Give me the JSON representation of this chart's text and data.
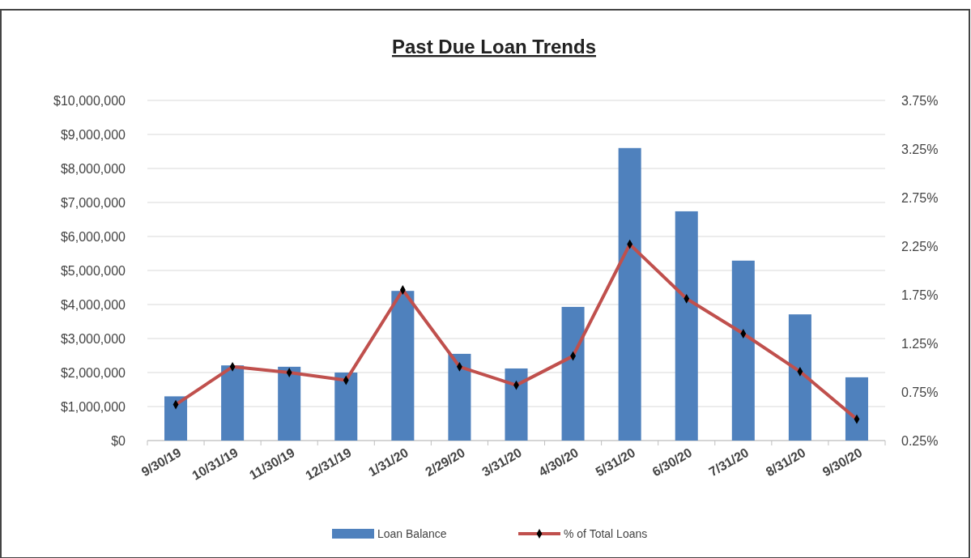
{
  "chart_data": {
    "type": "bar",
    "title": "Past Due Loan Trends",
    "categories": [
      "9/30/19",
      "10/31/19",
      "11/30/19",
      "12/31/19",
      "1/31/20",
      "2/29/20",
      "3/31/20",
      "4/30/20",
      "5/31/20",
      "6/30/20",
      "7/31/20",
      "8/31/20",
      "9/30/20"
    ],
    "series": [
      {
        "name": "Loan Balance",
        "color": "#4f81bd",
        "values": [
          1300000,
          2210000,
          2170000,
          2000000,
          4400000,
          2550000,
          2120000,
          3930000,
          8600000,
          6740000,
          5290000,
          3710000,
          1860000
        ]
      },
      {
        "name": "% of Total Loans",
        "type": "line",
        "axis": "y2",
        "color": "#c0504d",
        "marker": "diamond",
        "values": [
          0.62,
          1.01,
          0.95,
          0.87,
          1.8,
          1.01,
          0.82,
          1.12,
          2.27,
          1.71,
          1.35,
          0.96,
          0.47
        ]
      }
    ],
    "ylim": [
      0,
      10000000
    ],
    "yticks": [
      {
        "value": 0,
        "label": "$0"
      },
      {
        "value": 1000000,
        "label": "$1,000,000"
      },
      {
        "value": 2000000,
        "label": "$2,000,000"
      },
      {
        "value": 3000000,
        "label": "$3,000,000"
      },
      {
        "value": 4000000,
        "label": "$4,000,000"
      },
      {
        "value": 5000000,
        "label": "$5,000,000"
      },
      {
        "value": 6000000,
        "label": "$6,000,000"
      },
      {
        "value": 7000000,
        "label": "$7,000,000"
      },
      {
        "value": 8000000,
        "label": "$8,000,000"
      },
      {
        "value": 9000000,
        "label": "$9,000,000"
      },
      {
        "value": 10000000,
        "label": "$10,000,000"
      }
    ],
    "y2lim": [
      0.25,
      3.75
    ],
    "y2ticks": [
      {
        "value": 0.25,
        "label": "0.25%"
      },
      {
        "value": 0.75,
        "label": "0.75%"
      },
      {
        "value": 1.25,
        "label": "1.25%"
      },
      {
        "value": 1.75,
        "label": "1.75%"
      },
      {
        "value": 2.25,
        "label": "2.25%"
      },
      {
        "value": 2.75,
        "label": "2.75%"
      },
      {
        "value": 3.25,
        "label": "3.25%"
      },
      {
        "value": 3.75,
        "label": "3.75%"
      }
    ],
    "grid": "y",
    "legend": "bottom"
  }
}
